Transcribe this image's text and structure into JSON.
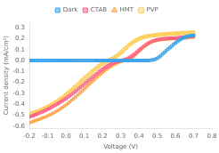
{
  "chart_data": {
    "type": "scatter",
    "xlabel": "Voltage (V)",
    "ylabel": "Current density (mA/cm²)",
    "xlim": [
      -0.2,
      0.8
    ],
    "ylim": [
      -0.62,
      0.35
    ],
    "xticks": [
      -0.2,
      -0.1,
      {
        "value": 0,
        "label": "0.0"
      },
      0.1,
      0.2,
      0.3,
      0.4,
      0.5,
      0.6,
      0.7,
      0.8
    ],
    "yticks": [
      -0.6,
      -0.5,
      -0.4,
      -0.3,
      -0.2,
      -0.1,
      {
        "value": 0,
        "label": "0.0"
      },
      0.1,
      0.2,
      0.3
    ],
    "grid": false,
    "legend": "top",
    "x": [
      -0.2,
      -0.19,
      -0.18,
      -0.17,
      -0.16,
      -0.15,
      -0.14,
      -0.13,
      -0.12,
      -0.11,
      -0.1,
      -0.09,
      -0.08,
      -0.07,
      -0.06,
      -0.05,
      -0.04,
      -0.03,
      -0.02,
      -0.01,
      0.0,
      0.01,
      0.02,
      0.03,
      0.04,
      0.05,
      0.06,
      0.07,
      0.08,
      0.09,
      0.1,
      0.11,
      0.12,
      0.13,
      0.14,
      0.15,
      0.16,
      0.17,
      0.18,
      0.19,
      0.2,
      0.21,
      0.22,
      0.23,
      0.24,
      0.25,
      0.26,
      0.27,
      0.28,
      0.29,
      0.3,
      0.31,
      0.32,
      0.33,
      0.34,
      0.35,
      0.36,
      0.37,
      0.38,
      0.39,
      0.4,
      0.41,
      0.42,
      0.43,
      0.44,
      0.45,
      0.46,
      0.47,
      0.48,
      0.49,
      0.5,
      0.51,
      0.52,
      0.53,
      0.54,
      0.55,
      0.56,
      0.57,
      0.58,
      0.59,
      0.6,
      0.61,
      0.62,
      0.63,
      0.64,
      0.65,
      0.66,
      0.67,
      0.68,
      0.69,
      0.7
    ],
    "series": [
      {
        "name": "Dark",
        "marker": "square",
        "values": [
          0.0,
          0.0,
          0.0,
          0.0,
          0.0,
          0.0,
          0.0,
          0.0,
          0.0,
          0.0,
          0.0,
          0.0,
          0.0,
          0.0,
          0.0,
          0.0,
          0.0,
          0.0,
          0.0,
          0.0,
          0.0,
          0.0,
          0.0,
          0.0,
          0.0,
          0.0,
          0.0,
          0.0,
          0.0,
          0.0,
          0.0,
          0.0,
          0.0,
          0.0,
          0.0,
          0.0,
          0.0,
          0.0,
          0.0,
          0.0,
          0.0,
          0.0,
          0.0,
          0.0,
          0.0,
          0.0,
          0.0,
          0.0,
          0.0,
          0.0,
          0.0,
          0.0,
          0.0,
          0.0,
          0.0,
          0.0,
          0.0,
          0.0,
          0.0,
          0.0,
          0.0,
          0.0,
          0.0,
          0.0,
          0.0,
          0.0,
          0.002,
          0.004,
          0.007,
          0.012,
          0.02,
          0.03,
          0.044,
          0.06,
          0.075,
          0.09,
          0.105,
          0.118,
          0.132,
          0.148,
          0.16,
          0.173,
          0.185,
          0.196,
          0.205,
          0.213,
          0.218,
          0.222,
          0.225,
          0.228,
          0.23
        ]
      },
      {
        "name": "CTAB",
        "marker": "square",
        "values": [
          -0.515,
          -0.51,
          -0.505,
          -0.498,
          -0.491,
          -0.484,
          -0.477,
          -0.47,
          -0.462,
          -0.454,
          -0.446,
          -0.437,
          -0.428,
          -0.419,
          -0.41,
          -0.4,
          -0.39,
          -0.38,
          -0.37,
          -0.359,
          -0.348,
          -0.336,
          -0.324,
          -0.312,
          -0.299,
          -0.286,
          -0.273,
          -0.259,
          -0.245,
          -0.231,
          -0.217,
          -0.202,
          -0.188,
          -0.174,
          -0.16,
          -0.146,
          -0.132,
          -0.119,
          -0.106,
          -0.093,
          -0.081,
          -0.069,
          -0.058,
          -0.048,
          -0.039,
          -0.03,
          -0.022,
          -0.016,
          -0.01,
          -0.005,
          -0.001,
          0.003,
          0.007,
          0.013,
          0.02,
          0.029,
          0.039,
          0.051,
          0.064,
          0.078,
          0.092,
          0.107,
          0.12,
          0.133,
          0.145,
          0.156,
          0.166,
          0.174,
          0.18,
          0.185,
          0.19,
          0.193,
          0.196,
          0.198,
          0.2,
          0.201,
          0.202,
          0.203,
          0.204,
          0.205,
          0.206,
          0.207,
          0.208,
          0.21,
          0.212,
          0.214,
          0.216,
          0.218,
          0.22,
          0.222,
          0.224
        ]
      },
      {
        "name": "HMT",
        "marker": "triangle",
        "values": [
          -0.57,
          -0.564,
          -0.558,
          -0.552,
          -0.546,
          -0.54,
          -0.534,
          -0.527,
          -0.52,
          -0.513,
          -0.506,
          -0.498,
          -0.49,
          -0.481,
          -0.472,
          -0.462,
          -0.452,
          -0.441,
          -0.43,
          -0.418,
          -0.406,
          -0.393,
          -0.38,
          -0.366,
          -0.352,
          -0.338,
          -0.323,
          -0.308,
          -0.293,
          -0.278,
          -0.262,
          -0.246,
          -0.23,
          -0.214,
          -0.199,
          -0.183,
          -0.168,
          -0.153,
          -0.138,
          -0.124,
          -0.11,
          -0.097,
          -0.084,
          -0.072,
          -0.06,
          -0.05,
          -0.04,
          -0.032,
          -0.024,
          -0.017,
          -0.011,
          -0.006,
          -0.002,
          0.002,
          0.008,
          0.016,
          0.026,
          0.038,
          0.052,
          0.067,
          0.083,
          0.099,
          0.114,
          0.128,
          0.14,
          0.151,
          0.161,
          0.169,
          0.175,
          0.18,
          0.184,
          0.187,
          0.189,
          0.191,
          0.193,
          0.194,
          0.195,
          0.196,
          0.197,
          0.198,
          0.199,
          0.2,
          0.201,
          0.202,
          0.203,
          0.204,
          0.205,
          0.207,
          0.209,
          0.211,
          0.213
        ]
      },
      {
        "name": "PVP",
        "marker": "circle",
        "values": [
          -0.49,
          -0.485,
          -0.48,
          -0.474,
          -0.468,
          -0.462,
          -0.455,
          -0.448,
          -0.44,
          -0.432,
          -0.424,
          -0.415,
          -0.406,
          -0.396,
          -0.386,
          -0.375,
          -0.364,
          -0.352,
          -0.34,
          -0.327,
          -0.314,
          -0.3,
          -0.286,
          -0.272,
          -0.257,
          -0.242,
          -0.227,
          -0.212,
          -0.197,
          -0.181,
          -0.166,
          -0.151,
          -0.136,
          -0.121,
          -0.106,
          -0.092,
          -0.078,
          -0.065,
          -0.052,
          -0.04,
          -0.029,
          -0.019,
          -0.01,
          -0.002,
          0.005,
          0.013,
          0.022,
          0.032,
          0.043,
          0.056,
          0.07,
          0.085,
          0.101,
          0.116,
          0.131,
          0.145,
          0.158,
          0.17,
          0.181,
          0.19,
          0.198,
          0.205,
          0.211,
          0.216,
          0.22,
          0.223,
          0.226,
          0.228,
          0.23,
          0.232,
          0.234,
          0.236,
          0.238,
          0.24,
          0.241,
          0.242,
          0.243,
          0.244,
          0.245,
          0.246,
          0.247,
          0.248,
          0.249,
          0.25,
          0.251,
          0.252,
          0.253,
          0.254,
          0.255,
          0.256,
          0.257
        ]
      }
    ]
  }
}
